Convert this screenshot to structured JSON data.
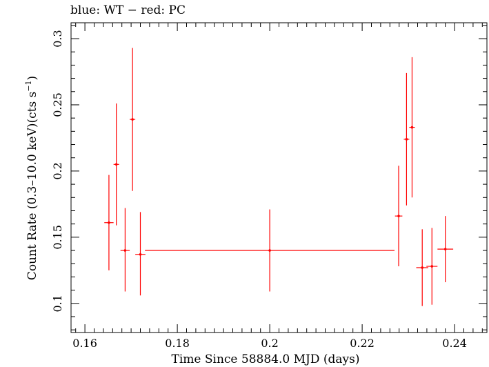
{
  "chart_data": {
    "type": "scatter",
    "title": "blue: WT − red: PC",
    "xlabel": "Time Since 58884.0 MJD (days)",
    "ylabel_main": "Count Rate (0.3–10.0 keV)(cts s",
    "ylabel_sup": "−1",
    "ylabel_tail": ")",
    "xlim": [
      0.157,
      0.247
    ],
    "ylim": [
      0.078,
      0.312
    ],
    "xticks": [
      0.16,
      0.18,
      0.2,
      0.22,
      0.24
    ],
    "xtick_labels": [
      "0.16",
      "0.18",
      "0.2",
      "0.22",
      "0.24"
    ],
    "yticks": [
      0.1,
      0.15,
      0.2,
      0.25,
      0.3
    ],
    "ytick_labels": [
      "0.1",
      "0.15",
      "0.2",
      "0.25",
      "0.3"
    ],
    "grid": false,
    "series": [
      {
        "color": "#ff0000",
        "points": [
          {
            "x": 0.1652,
            "y": 0.161,
            "xerr": 0.001,
            "yerr_lo": 0.036,
            "yerr_hi": 0.036
          },
          {
            "x": 0.1668,
            "y": 0.205,
            "xerr": 0.0006,
            "yerr_lo": 0.046,
            "yerr_hi": 0.046
          },
          {
            "x": 0.1687,
            "y": 0.14,
            "xerr": 0.001,
            "yerr_lo": 0.031,
            "yerr_hi": 0.032
          },
          {
            "x": 0.1703,
            "y": 0.239,
            "xerr": 0.0006,
            "yerr_lo": 0.054,
            "yerr_hi": 0.054
          },
          {
            "x": 0.172,
            "y": 0.137,
            "xerr": 0.0011,
            "yerr_lo": 0.031,
            "yerr_hi": 0.032
          },
          {
            "x": 0.2,
            "y": 0.14,
            "xerr": 0.027,
            "yerr_lo": 0.031,
            "yerr_hi": 0.031
          },
          {
            "x": 0.2279,
            "y": 0.166,
            "xerr": 0.0008,
            "yerr_lo": 0.038,
            "yerr_hi": 0.038
          },
          {
            "x": 0.2296,
            "y": 0.224,
            "xerr": 0.0006,
            "yerr_lo": 0.05,
            "yerr_hi": 0.05
          },
          {
            "x": 0.2308,
            "y": 0.233,
            "xerr": 0.0006,
            "yerr_lo": 0.053,
            "yerr_hi": 0.053
          },
          {
            "x": 0.233,
            "y": 0.127,
            "xerr": 0.0013,
            "yerr_lo": 0.029,
            "yerr_hi": 0.029
          },
          {
            "x": 0.2351,
            "y": 0.128,
            "xerr": 0.0012,
            "yerr_lo": 0.029,
            "yerr_hi": 0.029
          },
          {
            "x": 0.238,
            "y": 0.141,
            "xerr": 0.0017,
            "yerr_lo": 0.025,
            "yerr_hi": 0.025
          }
        ]
      }
    ]
  }
}
